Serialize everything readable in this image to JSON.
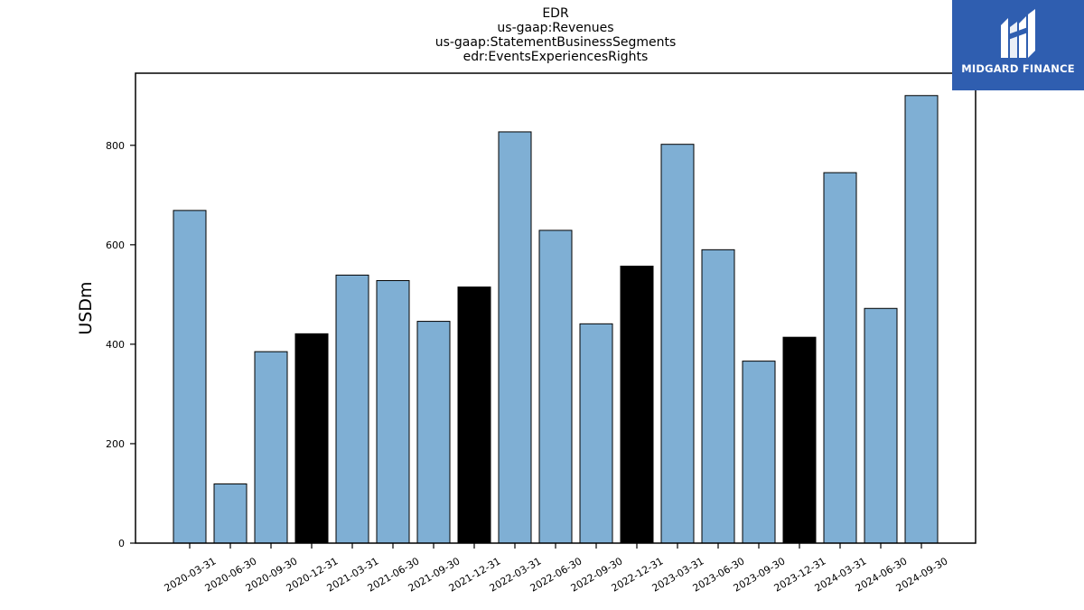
{
  "title_lines": [
    "EDR",
    "us-gaap:Revenues",
    "us-gaap:StatementBusinessSegments",
    "edr:EventsExperiencesRights"
  ],
  "logo": {
    "text": "MIDGARD FINANCE",
    "icon": "midgard-logo-icon",
    "background": "#2f5eb0"
  },
  "chart_data": {
    "type": "bar",
    "title": "EDR\nus-gaap:Revenues\nus-gaap:StatementBusinessSegments\nedr:EventsExperiencesRights",
    "xlabel": "",
    "ylabel": "USDm",
    "ylim": [
      0,
      945
    ],
    "yticks": [
      0,
      200,
      400,
      600,
      800
    ],
    "grid": false,
    "categories": [
      "2020-03-31",
      "2020-06-30",
      "2020-09-30",
      "2020-12-31",
      "2021-03-31",
      "2021-06-30",
      "2021-09-30",
      "2021-12-31",
      "2022-03-31",
      "2022-06-30",
      "2022-09-30",
      "2022-12-31",
      "2023-03-31",
      "2023-06-30",
      "2023-09-30",
      "2023-12-31",
      "2024-03-31",
      "2024-06-30",
      "2024-09-30"
    ],
    "values": [
      669,
      119,
      385,
      421,
      539,
      528,
      446,
      515,
      827,
      629,
      441,
      557,
      802,
      590,
      366,
      414,
      745,
      472,
      900
    ],
    "bar_colors": [
      "#7fafd4",
      "#7fafd4",
      "#7fafd4",
      "#000000",
      "#7fafd4",
      "#7fafd4",
      "#7fafd4",
      "#000000",
      "#7fafd4",
      "#7fafd4",
      "#7fafd4",
      "#000000",
      "#7fafd4",
      "#7fafd4",
      "#7fafd4",
      "#000000",
      "#7fafd4",
      "#7fafd4",
      "#7fafd4"
    ],
    "colors": {
      "quarter": "#7fafd4",
      "year_end": "#000000",
      "edge": "#000000"
    }
  }
}
